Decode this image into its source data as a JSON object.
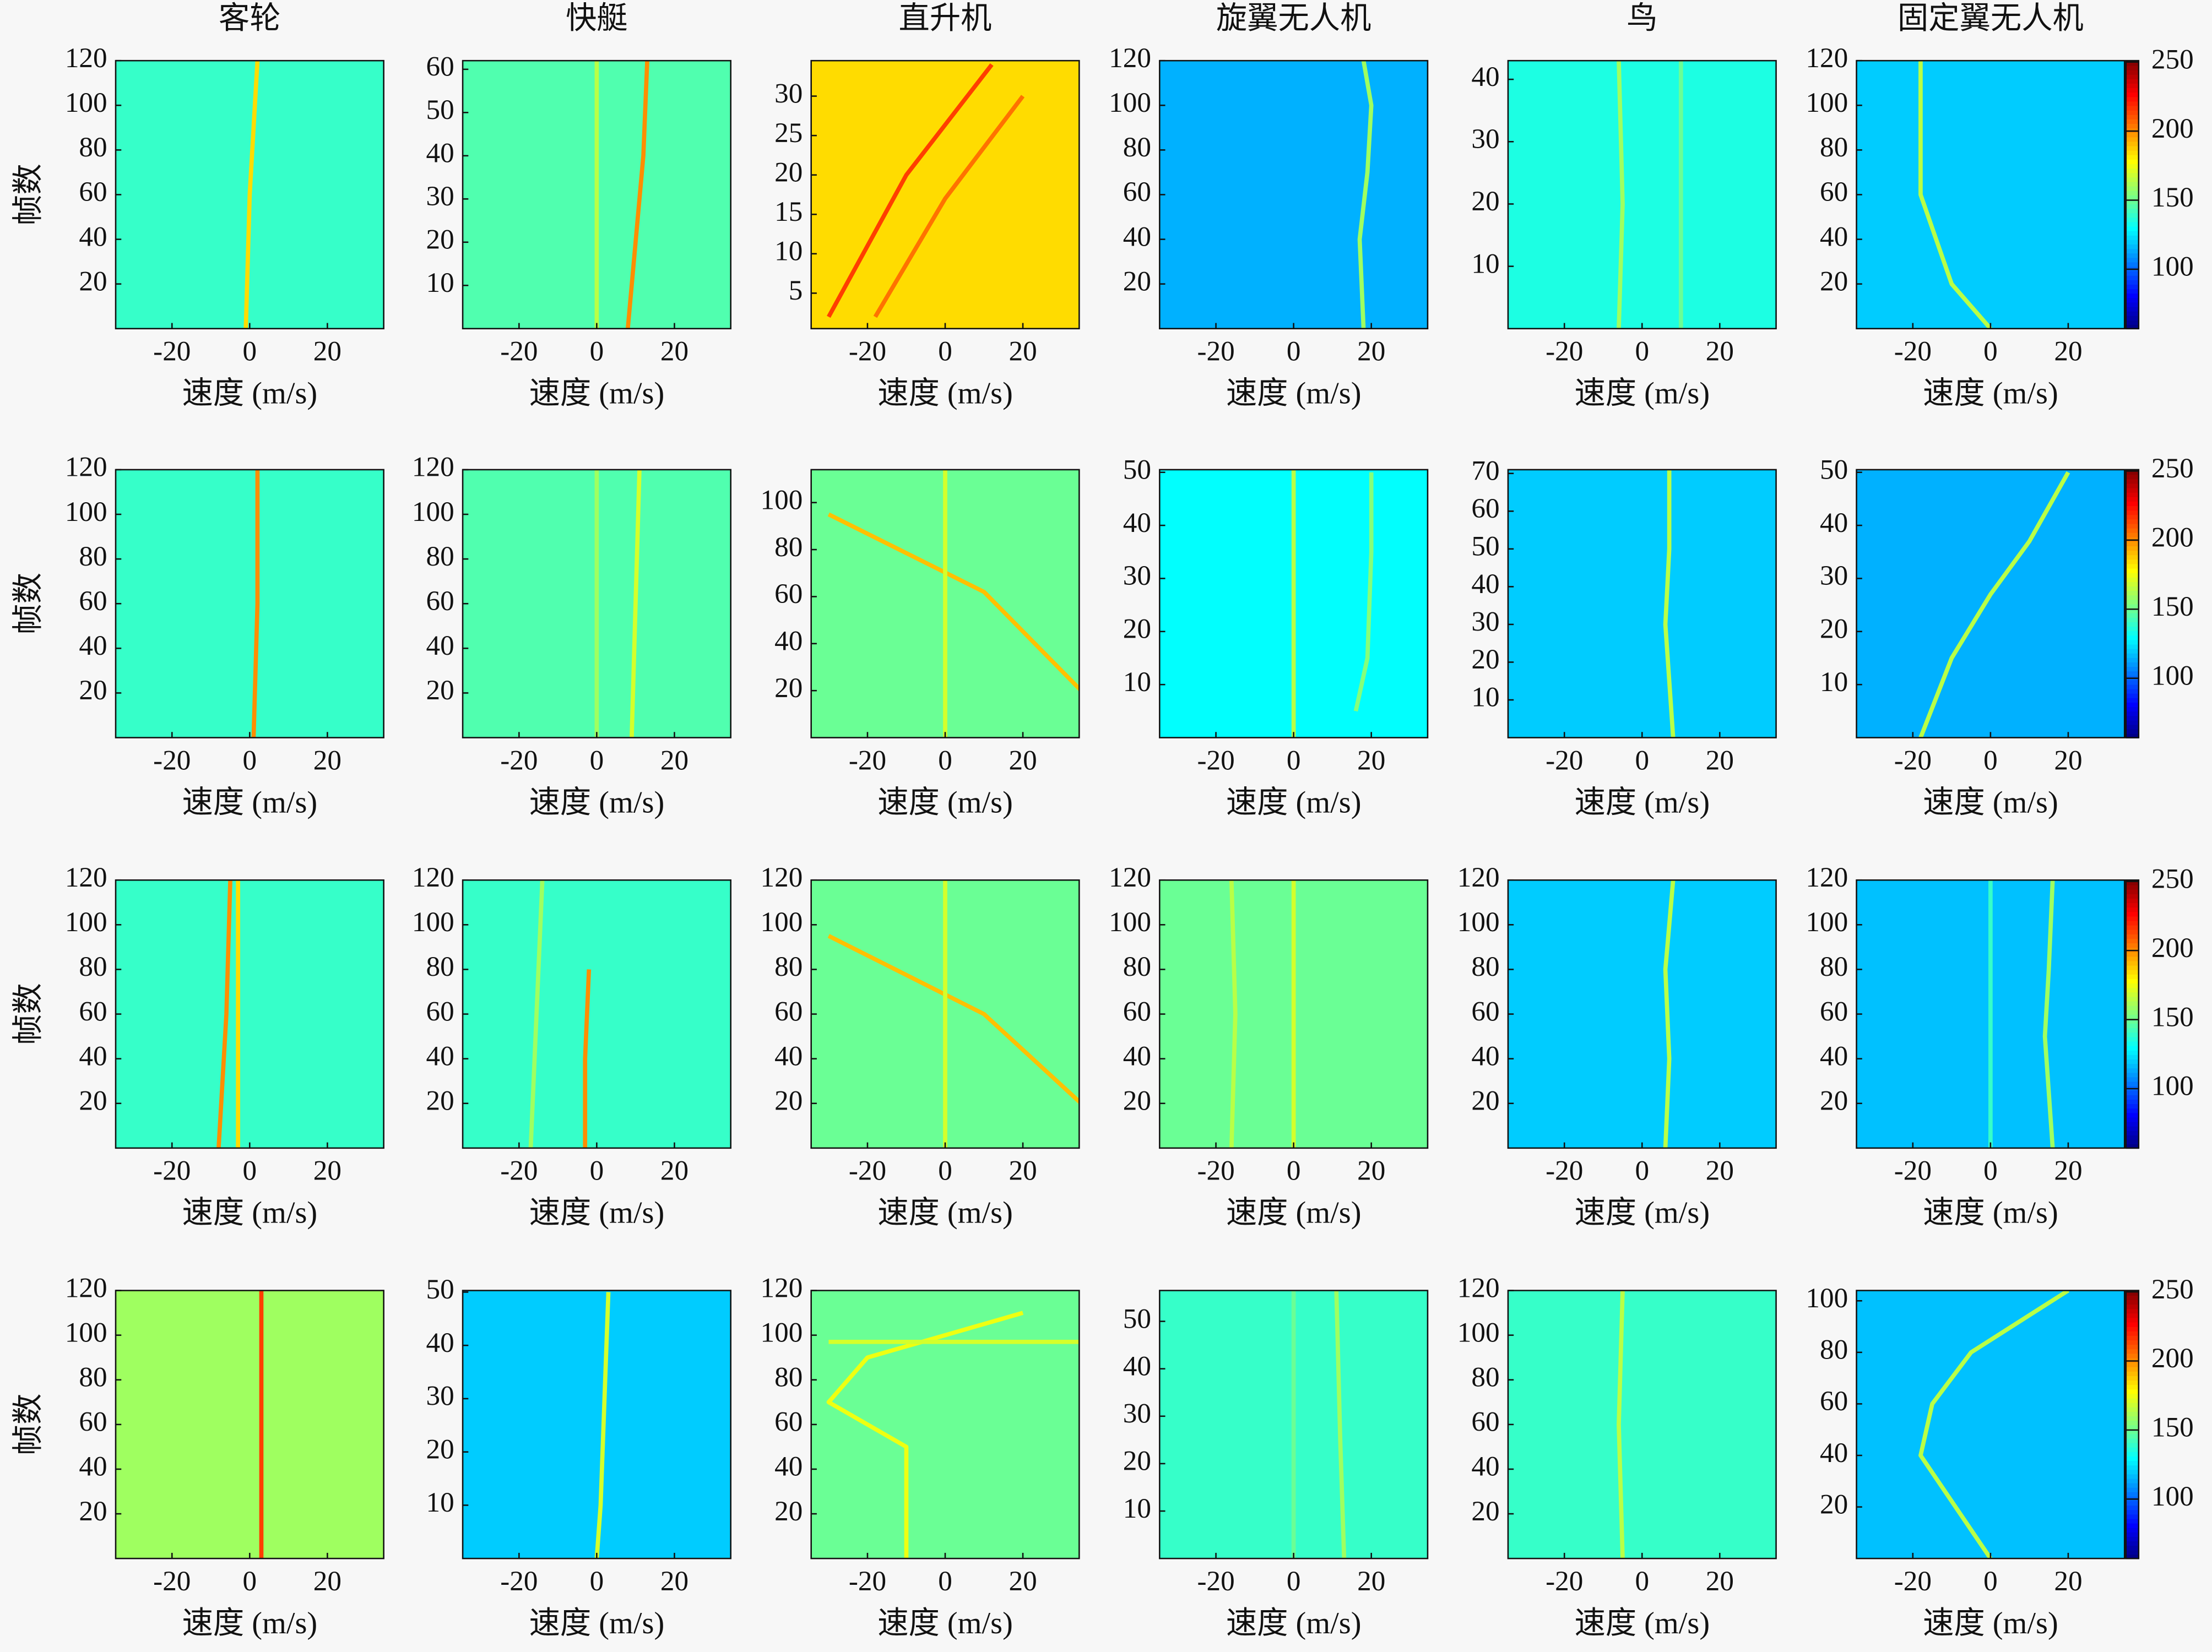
{
  "colorbar": {
    "colormap": "jet",
    "clim": [
      57,
      251
    ],
    "ticks": [
      100,
      150,
      200,
      250
    ]
  },
  "chart_data": [
    {
      "type": "heatmap",
      "title": "客轮",
      "ylabel": "帧数",
      "xlabel": "速度 (m/s)",
      "xlim": [
        -34.5,
        34.5
      ],
      "xticks": [
        -20,
        0,
        20
      ],
      "ylim": [
        0,
        120
      ],
      "yticks": [
        20,
        40,
        60,
        80,
        100,
        120
      ],
      "background": 140,
      "tracks": [
        {
          "x": [
            -1,
            0,
            2
          ],
          "y": [
            0,
            60,
            120
          ],
          "value": 185
        }
      ]
    },
    {
      "type": "heatmap",
      "title": "快艇",
      "xlabel": "速度 (m/s)",
      "xlim": [
        -34.5,
        34.5
      ],
      "xticks": [
        -20,
        0,
        20
      ],
      "ylim": [
        0,
        62
      ],
      "yticks": [
        10,
        20,
        30,
        40,
        50,
        60
      ],
      "background": 145,
      "tracks": [
        {
          "x": [
            0,
            0
          ],
          "y": [
            0,
            62
          ],
          "value": 165
        },
        {
          "x": [
            8,
            10,
            12,
            13
          ],
          "y": [
            0,
            20,
            40,
            62
          ],
          "value": 200
        }
      ]
    },
    {
      "type": "heatmap",
      "title": "直升机",
      "xlabel": "速度 (m/s)",
      "xlim": [
        -34.5,
        34.5
      ],
      "xticks": [
        -20,
        0,
        20
      ],
      "ylim": [
        0.5,
        34.5
      ],
      "yticks": [
        5,
        10,
        15,
        20,
        25,
        30
      ],
      "background": 185,
      "tracks": [
        {
          "x": [
            -30,
            -10,
            12
          ],
          "y": [
            2,
            20,
            34
          ],
          "value": 215
        },
        {
          "x": [
            -18,
            0,
            20
          ],
          "y": [
            2,
            17,
            30
          ],
          "value": 205
        }
      ]
    },
    {
      "type": "heatmap",
      "title": "旋翼无人机",
      "xlabel": "速度 (m/s)",
      "xlim": [
        -34.5,
        34.5
      ],
      "xticks": [
        -20,
        0,
        20
      ],
      "ylim": [
        0,
        120
      ],
      "yticks": [
        20,
        40,
        60,
        80,
        100,
        120
      ],
      "background": 115,
      "tracks": [
        {
          "x": [
            18,
            17,
            19,
            20,
            18
          ],
          "y": [
            0,
            40,
            70,
            100,
            120
          ],
          "value": 160
        }
      ]
    },
    {
      "type": "heatmap",
      "title": "鸟",
      "xlabel": "速度 (m/s)",
      "xlim": [
        -34.5,
        34.5
      ],
      "xticks": [
        -20,
        0,
        20
      ],
      "ylim": [
        0,
        43
      ],
      "yticks": [
        10,
        20,
        30,
        40
      ],
      "background": 135,
      "tracks": [
        {
          "x": [
            -6,
            -5,
            -6
          ],
          "y": [
            0,
            20,
            43
          ],
          "value": 160
        },
        {
          "x": [
            10,
            10
          ],
          "y": [
            0,
            43
          ],
          "value": 150
        }
      ]
    },
    {
      "type": "heatmap",
      "title": "固定翼无人机",
      "xlabel": "速度 (m/s)",
      "xlim": [
        -34.5,
        34.5
      ],
      "xticks": [
        -20,
        0,
        20
      ],
      "ylim": [
        0,
        120
      ],
      "yticks": [
        20,
        40,
        60,
        80,
        100,
        120
      ],
      "background": 120,
      "tracks": [
        {
          "x": [
            0,
            -10,
            -18,
            -18
          ],
          "y": [
            0,
            20,
            60,
            120
          ],
          "value": 165
        }
      ]
    },
    {
      "type": "heatmap",
      "ylabel": "帧数",
      "xlabel": "速度 (m/s)",
      "xlim": [
        -34.5,
        34.5
      ],
      "xticks": [
        -20,
        0,
        20
      ],
      "ylim": [
        0,
        120
      ],
      "yticks": [
        20,
        40,
        60,
        80,
        100,
        120
      ],
      "background": 140,
      "tracks": [
        {
          "x": [
            1,
            2,
            2
          ],
          "y": [
            0,
            60,
            120
          ],
          "value": 200
        }
      ]
    },
    {
      "type": "heatmap",
      "xlabel": "速度 (m/s)",
      "xlim": [
        -34.5,
        34.5
      ],
      "xticks": [
        -20,
        0,
        20
      ],
      "ylim": [
        0,
        120
      ],
      "yticks": [
        20,
        40,
        60,
        80,
        100,
        120
      ],
      "background": 145,
      "tracks": [
        {
          "x": [
            0,
            0
          ],
          "y": [
            0,
            120
          ],
          "value": 160
        },
        {
          "x": [
            9,
            10,
            11
          ],
          "y": [
            0,
            60,
            120
          ],
          "value": 170
        }
      ]
    },
    {
      "type": "heatmap",
      "xlabel": "速度 (m/s)",
      "xlim": [
        -34.5,
        34.5
      ],
      "xticks": [
        -20,
        0,
        20
      ],
      "ylim": [
        0,
        114
      ],
      "yticks": [
        20,
        40,
        60,
        80,
        100
      ],
      "background": 150,
      "tracks": [
        {
          "x": [
            -30,
            10,
            35
          ],
          "y": [
            95,
            62,
            20
          ],
          "value": 190
        },
        {
          "x": [
            0,
            0
          ],
          "y": [
            0,
            114
          ],
          "value": 170
        }
      ]
    },
    {
      "type": "heatmap",
      "xlabel": "速度 (m/s)",
      "xlim": [
        -34.5,
        34.5
      ],
      "xticks": [
        -20,
        0,
        20
      ],
      "ylim": [
        0,
        50.5
      ],
      "yticks": [
        10,
        20,
        30,
        40,
        50
      ],
      "background": 130,
      "tracks": [
        {
          "x": [
            0,
            0
          ],
          "y": [
            0,
            50.5
          ],
          "value": 165
        },
        {
          "x": [
            16,
            19,
            20,
            20
          ],
          "y": [
            5,
            15,
            35,
            50
          ],
          "value": 155
        }
      ]
    },
    {
      "type": "heatmap",
      "xlabel": "速度 (m/s)",
      "xlim": [
        -34.5,
        34.5
      ],
      "xticks": [
        -20,
        0,
        20
      ],
      "ylim": [
        0,
        71
      ],
      "yticks": [
        10,
        20,
        30,
        40,
        50,
        60,
        70
      ],
      "background": 120,
      "tracks": [
        {
          "x": [
            8,
            6,
            7,
            7
          ],
          "y": [
            0,
            30,
            50,
            71
          ],
          "value": 165
        }
      ]
    },
    {
      "type": "heatmap",
      "xlabel": "速度 (m/s)",
      "xlim": [
        -34.5,
        34.5
      ],
      "xticks": [
        -20,
        0,
        20
      ],
      "ylim": [
        0,
        50.5
      ],
      "yticks": [
        10,
        20,
        30,
        40,
        50
      ],
      "background": 115,
      "tracks": [
        {
          "x": [
            -18,
            -10,
            0,
            10,
            20
          ],
          "y": [
            0,
            15,
            27,
            37,
            50
          ],
          "value": 165
        }
      ]
    },
    {
      "type": "heatmap",
      "ylabel": "帧数",
      "xlabel": "速度 (m/s)",
      "xlim": [
        -34.5,
        34.5
      ],
      "xticks": [
        -20,
        0,
        20
      ],
      "ylim": [
        0,
        120
      ],
      "yticks": [
        20,
        40,
        60,
        80,
        100,
        120
      ],
      "background": 140,
      "tracks": [
        {
          "x": [
            -8,
            -6,
            -5
          ],
          "y": [
            0,
            60,
            120
          ],
          "value": 200
        },
        {
          "x": [
            -3,
            -3
          ],
          "y": [
            0,
            120
          ],
          "value": 185
        }
      ]
    },
    {
      "type": "heatmap",
      "xlabel": "速度 (m/s)",
      "xlim": [
        -34.5,
        34.5
      ],
      "xticks": [
        -20,
        0,
        20
      ],
      "ylim": [
        0,
        120
      ],
      "yticks": [
        20,
        40,
        60,
        80,
        100,
        120
      ],
      "background": 140,
      "tracks": [
        {
          "x": [
            -3,
            -3,
            -2
          ],
          "y": [
            0,
            40,
            80
          ],
          "value": 200
        },
        {
          "x": [
            -17,
            -14
          ],
          "y": [
            0,
            120
          ],
          "value": 160
        }
      ]
    },
    {
      "type": "heatmap",
      "xlabel": "速度 (m/s)",
      "xlim": [
        -34.5,
        34.5
      ],
      "xticks": [
        -20,
        0,
        20
      ],
      "ylim": [
        0,
        120
      ],
      "yticks": [
        20,
        40,
        60,
        80,
        100,
        120
      ],
      "background": 150,
      "tracks": [
        {
          "x": [
            -30,
            10,
            35
          ],
          "y": [
            95,
            60,
            20
          ],
          "value": 190
        },
        {
          "x": [
            0,
            0
          ],
          "y": [
            0,
            120
          ],
          "value": 170
        }
      ]
    },
    {
      "type": "heatmap",
      "xlabel": "速度 (m/s)",
      "xlim": [
        -34.5,
        34.5
      ],
      "xticks": [
        -20,
        0,
        20
      ],
      "ylim": [
        0,
        120
      ],
      "yticks": [
        20,
        40,
        60,
        80,
        100,
        120
      ],
      "background": 150,
      "tracks": [
        {
          "x": [
            -16,
            -15,
            -16
          ],
          "y": [
            0,
            60,
            120
          ],
          "value": 165
        },
        {
          "x": [
            0,
            0
          ],
          "y": [
            0,
            120
          ],
          "value": 170
        }
      ]
    },
    {
      "type": "heatmap",
      "xlabel": "速度 (m/s)",
      "xlim": [
        -34.5,
        34.5
      ],
      "xticks": [
        -20,
        0,
        20
      ],
      "ylim": [
        0,
        120
      ],
      "yticks": [
        20,
        40,
        60,
        80,
        100,
        120
      ],
      "background": 120,
      "tracks": [
        {
          "x": [
            6,
            7,
            6,
            8
          ],
          "y": [
            0,
            40,
            80,
            120
          ],
          "value": 165
        }
      ]
    },
    {
      "type": "heatmap",
      "xlabel": "速度 (m/s)",
      "xlim": [
        -34.5,
        34.5
      ],
      "xticks": [
        -20,
        0,
        20
      ],
      "ylim": [
        0,
        120
      ],
      "yticks": [
        20,
        40,
        60,
        80,
        100,
        120
      ],
      "background": 118,
      "tracks": [
        {
          "x": [
            16,
            14,
            15,
            16
          ],
          "y": [
            0,
            50,
            80,
            120
          ],
          "value": 160
        },
        {
          "x": [
            0,
            0
          ],
          "y": [
            0,
            120
          ],
          "value": 140
        }
      ]
    },
    {
      "type": "heatmap",
      "ylabel": "帧数",
      "xlabel": "速度 (m/s)",
      "xlim": [
        -34.5,
        34.5
      ],
      "xticks": [
        -20,
        0,
        20
      ],
      "ylim": [
        0,
        120
      ],
      "yticks": [
        20,
        40,
        60,
        80,
        100,
        120
      ],
      "background": 160,
      "tracks": [
        {
          "x": [
            3,
            3
          ],
          "y": [
            0,
            120
          ],
          "value": 215
        }
      ]
    },
    {
      "type": "heatmap",
      "xlabel": "速度 (m/s)",
      "xlim": [
        -34.5,
        34.5
      ],
      "xticks": [
        -20,
        0,
        20
      ],
      "ylim": [
        0,
        50.3
      ],
      "yticks": [
        10,
        20,
        30,
        40,
        50
      ],
      "background": 120,
      "tracks": [
        {
          "x": [
            0,
            1,
            2,
            3
          ],
          "y": [
            0,
            10,
            30,
            50
          ],
          "value": 170
        }
      ]
    },
    {
      "type": "heatmap",
      "xlabel": "速度 (m/s)",
      "xlim": [
        -34.5,
        34.5
      ],
      "xticks": [
        -20,
        0,
        20
      ],
      "ylim": [
        0,
        120
      ],
      "yticks": [
        20,
        40,
        60,
        80,
        100,
        120
      ],
      "background": 150,
      "tracks": [
        {
          "x": [
            -10,
            -10,
            -30,
            -20,
            20
          ],
          "y": [
            0,
            50,
            70,
            90,
            110
          ],
          "value": 175
        },
        {
          "x": [
            -30,
            35
          ],
          "y": [
            97,
            97
          ],
          "value": 170
        }
      ]
    },
    {
      "type": "heatmap",
      "xlabel": "速度 (m/s)",
      "xlim": [
        -34.5,
        34.5
      ],
      "xticks": [
        -20,
        0,
        20
      ],
      "ylim": [
        0,
        56.5
      ],
      "yticks": [
        10,
        20,
        30,
        40,
        50
      ],
      "background": 140,
      "tracks": [
        {
          "x": [
            13,
            12,
            11
          ],
          "y": [
            0,
            25,
            56.5
          ],
          "value": 160
        },
        {
          "x": [
            0,
            0
          ],
          "y": [
            0,
            56.5
          ],
          "value": 150
        }
      ]
    },
    {
      "type": "heatmap",
      "xlabel": "速度 (m/s)",
      "xlim": [
        -34.5,
        34.5
      ],
      "xticks": [
        -20,
        0,
        20
      ],
      "ylim": [
        0,
        120
      ],
      "yticks": [
        20,
        40,
        60,
        80,
        100,
        120
      ],
      "background": 140,
      "tracks": [
        {
          "x": [
            -5,
            -6,
            -5
          ],
          "y": [
            0,
            60,
            120
          ],
          "value": 165
        }
      ]
    },
    {
      "type": "heatmap",
      "xlabel": "速度 (m/s)",
      "xlim": [
        -34.5,
        34.5
      ],
      "xticks": [
        -20,
        0,
        20
      ],
      "ylim": [
        0,
        104
      ],
      "yticks": [
        20,
        40,
        60,
        80,
        100
      ],
      "background": 118,
      "tracks": [
        {
          "x": [
            0,
            -18,
            -15,
            -5,
            20
          ],
          "y": [
            0,
            40,
            60,
            80,
            104
          ],
          "value": 165
        }
      ]
    }
  ]
}
